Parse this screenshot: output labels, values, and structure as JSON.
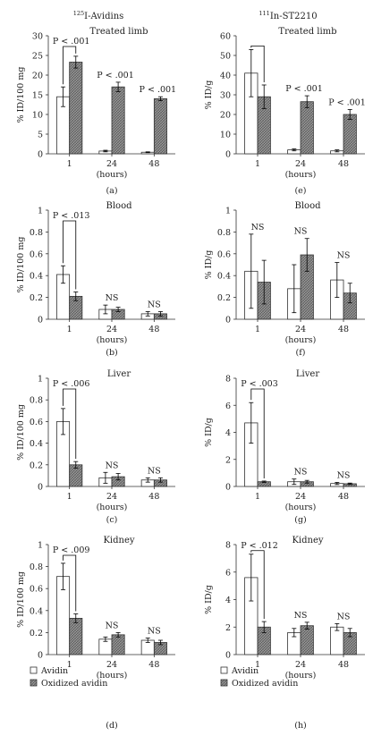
{
  "headers": {
    "left_num": "125",
    "left_name": "I-Avidins",
    "right_num": "111",
    "right_name": "In-ST2210"
  },
  "legend": {
    "avidin": "Avidin",
    "oxidized": "Oxidized avidin"
  },
  "colors": {
    "avidin_fill": "#ffffff",
    "oxidized_fill": "#9a9a9a",
    "stroke": "#333333"
  },
  "chart_data": [
    {
      "type": "bar",
      "letter": "(a)",
      "title": "Treated limb",
      "ylabel": "% ID/100 mg",
      "xlabel": "(hours)",
      "categories": [
        "1",
        "24",
        "48"
      ],
      "ylim": [
        0,
        30
      ],
      "yticks": [
        "0",
        "5",
        "10",
        "15",
        "20",
        "25",
        "30"
      ],
      "ytick_values": [
        0,
        5,
        10,
        15,
        20,
        25,
        30
      ],
      "series": [
        {
          "name": "Avidin",
          "values": [
            14.5,
            0.7,
            0.4
          ],
          "errors": [
            2.5,
            0.2,
            0.1
          ]
        },
        {
          "name": "Oxidized avidin",
          "values": [
            23.3,
            17.0,
            14.0
          ],
          "errors": [
            1.5,
            1.2,
            0.5
          ]
        }
      ],
      "annotations": [
        {
          "text": "P < .001",
          "category": 0,
          "bracket": true
        },
        {
          "text": "P < .001",
          "category": 1
        },
        {
          "text": "P < .001",
          "category": 2
        }
      ]
    },
    {
      "type": "bar",
      "letter": "(b)",
      "title": "Blood",
      "ylabel": "% ID/100 mg",
      "xlabel": "(hours)",
      "categories": [
        "1",
        "24",
        "48"
      ],
      "ylim": [
        0,
        1
      ],
      "yticks": [
        "0",
        "0.2",
        "0.4",
        "0.6",
        "0.8",
        "1"
      ],
      "ytick_values": [
        0,
        0.2,
        0.4,
        0.6,
        0.8,
        1
      ],
      "series": [
        {
          "name": "Avidin",
          "values": [
            0.41,
            0.09,
            0.05
          ],
          "errors": [
            0.08,
            0.04,
            0.02
          ]
        },
        {
          "name": "Oxidized avidin",
          "values": [
            0.21,
            0.09,
            0.05
          ],
          "errors": [
            0.04,
            0.02,
            0.02
          ]
        }
      ],
      "annotations": [
        {
          "text": "P < .013",
          "category": 0,
          "bracket": true
        },
        {
          "text": "NS",
          "category": 1
        },
        {
          "text": "NS",
          "category": 2
        }
      ]
    },
    {
      "type": "bar",
      "letter": "(c)",
      "title": "Liver",
      "ylabel": "% ID/100 mg",
      "xlabel": "(hours)",
      "categories": [
        "1",
        "24",
        "48"
      ],
      "ylim": [
        0,
        1
      ],
      "yticks": [
        "0",
        "0.2",
        "0.4",
        "0.6",
        "0.8",
        "1"
      ],
      "ytick_values": [
        0,
        0.2,
        0.4,
        0.6,
        0.8,
        1
      ],
      "series": [
        {
          "name": "Avidin",
          "values": [
            0.6,
            0.08,
            0.06
          ],
          "errors": [
            0.12,
            0.05,
            0.02
          ]
        },
        {
          "name": "Oxidized avidin",
          "values": [
            0.2,
            0.09,
            0.06
          ],
          "errors": [
            0.03,
            0.03,
            0.02
          ]
        }
      ],
      "annotations": [
        {
          "text": "P < .006",
          "category": 0,
          "bracket": true
        },
        {
          "text": "NS",
          "category": 1
        },
        {
          "text": "NS",
          "category": 2
        }
      ]
    },
    {
      "type": "bar",
      "letter": "(d)",
      "title": "Kidney",
      "ylabel": "% ID/100 mg",
      "xlabel": "(hours)",
      "categories": [
        "1",
        "24",
        "48"
      ],
      "ylim": [
        0,
        1
      ],
      "yticks": [
        "0",
        "0.2",
        "0.4",
        "0.6",
        "0.8",
        "1"
      ],
      "ytick_values": [
        0,
        0.2,
        0.4,
        0.6,
        0.8,
        1
      ],
      "series": [
        {
          "name": "Avidin",
          "values": [
            0.71,
            0.14,
            0.13
          ],
          "errors": [
            0.12,
            0.02,
            0.02
          ]
        },
        {
          "name": "Oxidized avidin",
          "values": [
            0.33,
            0.18,
            0.11
          ],
          "errors": [
            0.04,
            0.02,
            0.02
          ]
        }
      ],
      "annotations": [
        {
          "text": "P < .009",
          "category": 0,
          "bracket": true
        },
        {
          "text": "NS",
          "category": 1
        },
        {
          "text": "NS",
          "category": 2
        }
      ]
    },
    {
      "type": "bar",
      "letter": "(e)",
      "title": "Treated limb",
      "ylabel": "% ID/g",
      "xlabel": "(hours)",
      "categories": [
        "1",
        "24",
        "48"
      ],
      "ylim": [
        0,
        60
      ],
      "yticks": [
        "0",
        "10",
        "20",
        "30",
        "40",
        "50",
        "60"
      ],
      "ytick_values": [
        0,
        10,
        20,
        30,
        40,
        50,
        60
      ],
      "series": [
        {
          "name": "Avidin",
          "values": [
            41,
            2,
            1.5
          ],
          "errors": [
            12,
            0.5,
            0.5
          ]
        },
        {
          "name": "Oxidized avidin",
          "values": [
            29,
            26.5,
            20
          ],
          "errors": [
            6,
            3,
            2.5
          ]
        }
      ],
      "annotations": [
        {
          "text": "P < .001",
          "category": 1
        },
        {
          "text": "P < .001",
          "category": 2
        }
      ],
      "bracket_only": [
        0
      ]
    },
    {
      "type": "bar",
      "letter": "(f)",
      "title": "Blood",
      "ylabel": "% ID/g",
      "xlabel": "(hours)",
      "categories": [
        "1",
        "24",
        "48"
      ],
      "ylim": [
        0,
        1
      ],
      "yticks": [
        "0",
        "0.2",
        "0.4",
        "0.6",
        "0.8",
        "1"
      ],
      "ytick_values": [
        0,
        0.2,
        0.4,
        0.6,
        0.8,
        1
      ],
      "series": [
        {
          "name": "Avidin",
          "values": [
            0.44,
            0.28,
            0.36
          ],
          "errors": [
            0.34,
            0.22,
            0.16
          ]
        },
        {
          "name": "Oxidized avidin",
          "values": [
            0.34,
            0.59,
            0.24
          ],
          "errors": [
            0.2,
            0.15,
            0.09
          ]
        }
      ],
      "annotations": [
        {
          "text": "NS",
          "category": 0
        },
        {
          "text": "NS",
          "category": 1
        },
        {
          "text": "NS",
          "category": 2
        }
      ]
    },
    {
      "type": "bar",
      "letter": "(g)",
      "title": "Liver",
      "ylabel": "% ID/g",
      "xlabel": "(hours)",
      "categories": [
        "1",
        "24",
        "48"
      ],
      "ylim": [
        0,
        8
      ],
      "yticks": [
        "0",
        "2",
        "4",
        "6",
        "8"
      ],
      "ytick_values": [
        0,
        2,
        4,
        6,
        8
      ],
      "series": [
        {
          "name": "Avidin",
          "values": [
            4.7,
            0.35,
            0.22
          ],
          "errors": [
            1.5,
            0.2,
            0.08
          ]
        },
        {
          "name": "Oxidized avidin",
          "values": [
            0.35,
            0.35,
            0.2
          ],
          "errors": [
            0.05,
            0.1,
            0.05
          ]
        }
      ],
      "annotations": [
        {
          "text": "P < .003",
          "category": 0,
          "bracket": true
        },
        {
          "text": "NS",
          "category": 1
        },
        {
          "text": "NS",
          "category": 2
        }
      ]
    },
    {
      "type": "bar",
      "letter": "(h)",
      "title": "Kidney",
      "ylabel": "% ID/g",
      "xlabel": "(hours)",
      "categories": [
        "1",
        "24",
        "48"
      ],
      "ylim": [
        0,
        8
      ],
      "yticks": [
        "0",
        "2",
        "4",
        "6",
        "8"
      ],
      "ytick_values": [
        0,
        2,
        4,
        6,
        8
      ],
      "series": [
        {
          "name": "Avidin",
          "values": [
            5.6,
            1.6,
            2.0
          ],
          "errors": [
            1.7,
            0.3,
            0.25
          ]
        },
        {
          "name": "Oxidized avidin",
          "values": [
            2.0,
            2.1,
            1.6
          ],
          "errors": [
            0.4,
            0.25,
            0.3
          ]
        }
      ],
      "annotations": [
        {
          "text": "P < .012",
          "category": 0,
          "bracket": true
        },
        {
          "text": "NS",
          "category": 1
        },
        {
          "text": "NS",
          "category": 2
        }
      ]
    }
  ]
}
